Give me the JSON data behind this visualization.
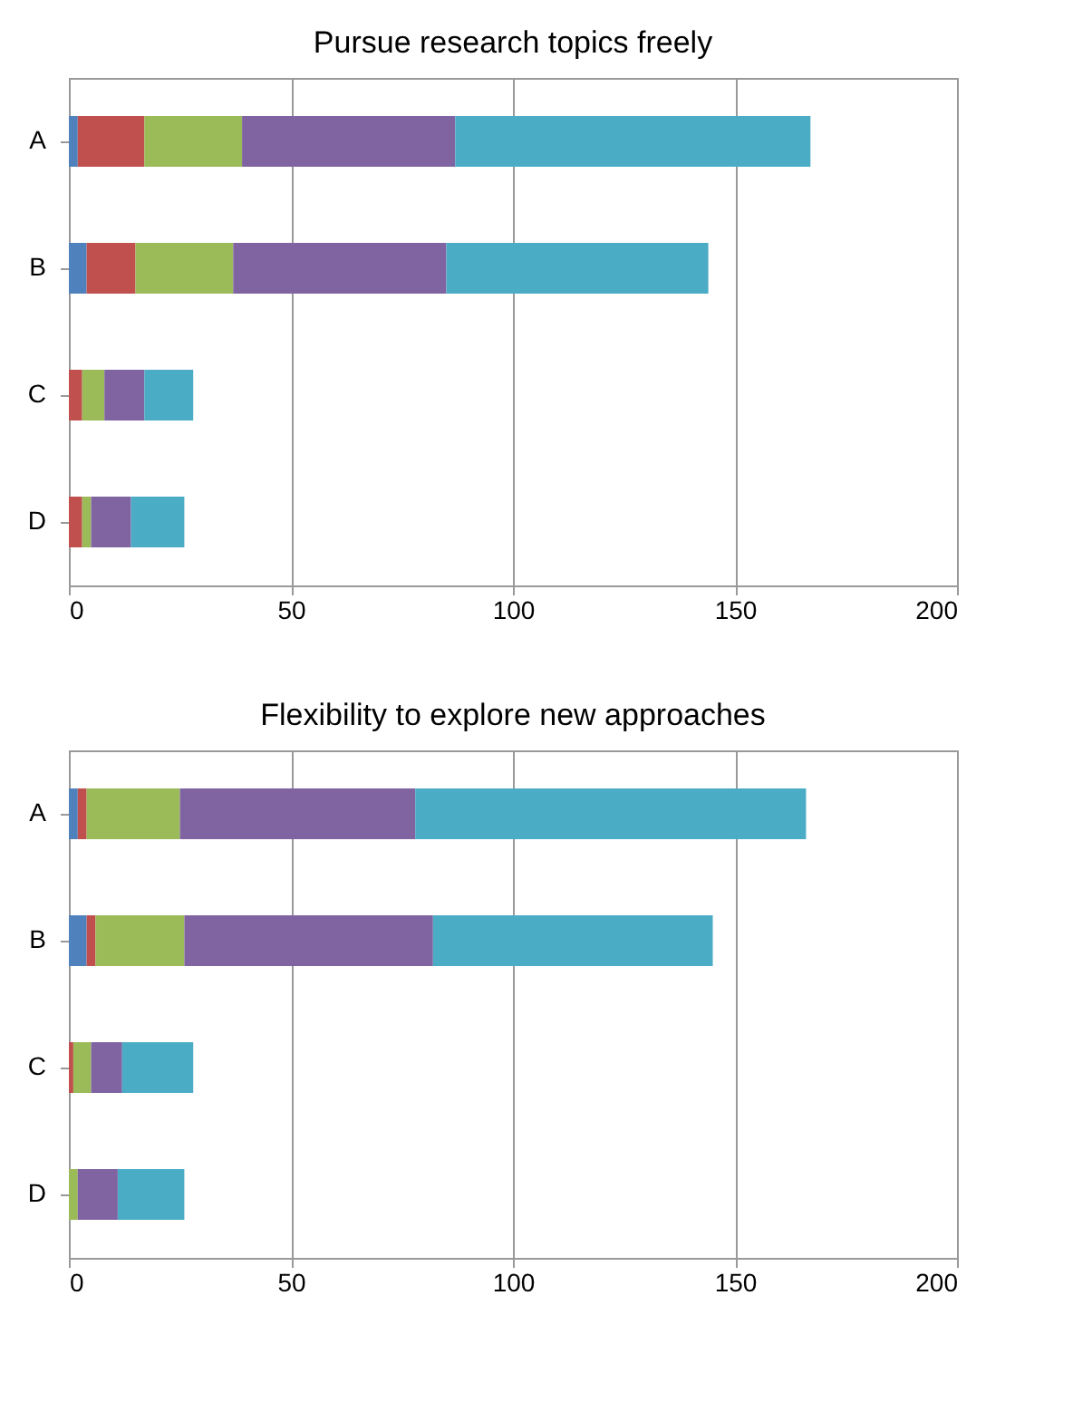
{
  "chart_data": [
    {
      "type": "bar",
      "orientation": "horizontal",
      "stacked": true,
      "title": "Pursue research topics freely",
      "categories": [
        "A",
        "B",
        "C",
        "D"
      ],
      "xlim": [
        0,
        200
      ],
      "xticks": [
        0,
        50,
        100,
        150,
        200
      ],
      "grid": "x",
      "legend": false,
      "series": [
        {
          "color": "#4f81bd",
          "values": [
            2,
            4,
            0,
            0
          ]
        },
        {
          "color": "#c0504d",
          "values": [
            15,
            11,
            3,
            3
          ]
        },
        {
          "color": "#9bbb59",
          "values": [
            22,
            22,
            5,
            2
          ]
        },
        {
          "color": "#8064a2",
          "values": [
            48,
            48,
            9,
            9
          ]
        },
        {
          "color": "#4bacc6",
          "values": [
            80,
            59,
            11,
            12
          ]
        }
      ]
    },
    {
      "type": "bar",
      "orientation": "horizontal",
      "stacked": true,
      "title": "Flexibility to explore new approaches",
      "categories": [
        "A",
        "B",
        "C",
        "D"
      ],
      "xlim": [
        0,
        200
      ],
      "xticks": [
        0,
        50,
        100,
        150,
        200
      ],
      "grid": "x",
      "legend": false,
      "series": [
        {
          "color": "#4f81bd",
          "values": [
            2,
            4,
            0,
            0
          ]
        },
        {
          "color": "#c0504d",
          "values": [
            2,
            2,
            1,
            0
          ]
        },
        {
          "color": "#9bbb59",
          "values": [
            21,
            20,
            4,
            2
          ]
        },
        {
          "color": "#8064a2",
          "values": [
            53,
            56,
            7,
            9
          ]
        },
        {
          "color": "#4bacc6",
          "values": [
            88,
            63,
            16,
            15
          ]
        }
      ]
    }
  ]
}
